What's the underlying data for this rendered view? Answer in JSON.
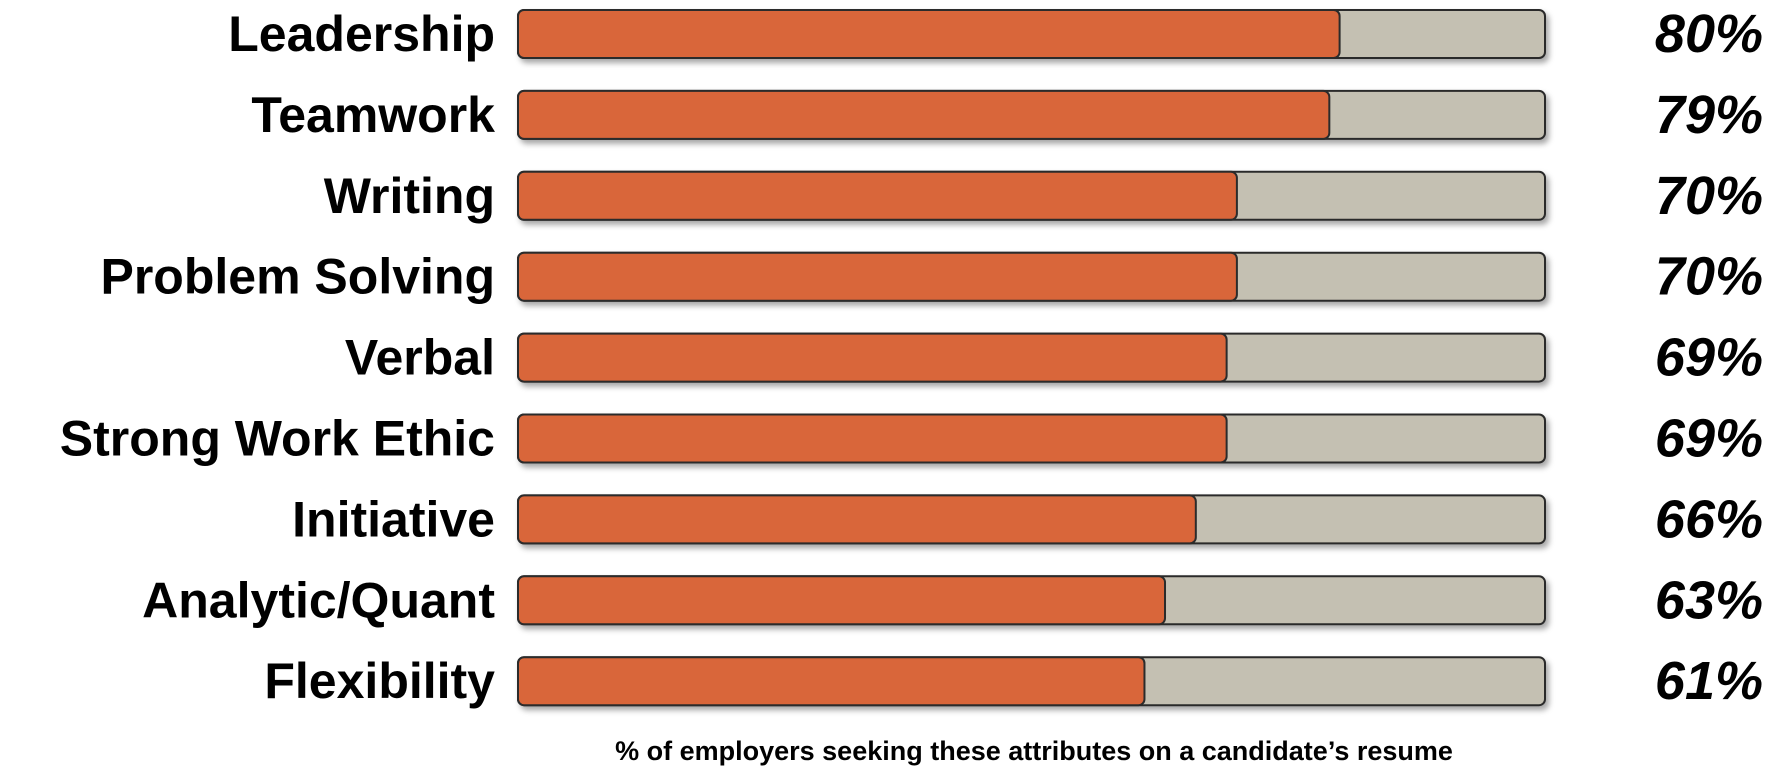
{
  "chart_data": {
    "type": "bar",
    "orientation": "horizontal",
    "categories": [
      "Leadership",
      "Teamwork",
      "Writing",
      "Problem Solving",
      "Verbal",
      "Strong Work Ethic",
      "Initiative",
      "Analytic/Quant",
      "Flexibility"
    ],
    "values": [
      80,
      79,
      70,
      70,
      69,
      69,
      66,
      63,
      61
    ],
    "value_labels": [
      "80%",
      "79%",
      "70%",
      "70%",
      "69%",
      "69%",
      "66%",
      "63%",
      "61%"
    ],
    "title": "",
    "xlabel": "% of employers seeking these attributes on a candidate’s resume",
    "ylabel": "",
    "xlim": [
      0,
      100
    ],
    "grid": false,
    "legend": "none",
    "colors": {
      "bar_fill": "#D9663A",
      "track_fill": "#C4C0B2",
      "outline": "#2b2b2b",
      "text": "#000000"
    }
  }
}
